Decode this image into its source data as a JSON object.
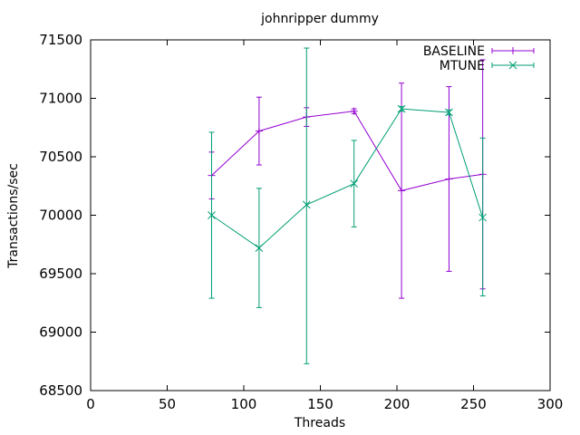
{
  "chart_data": {
    "type": "line",
    "title": "johnripper dummy",
    "xlabel": "Threads",
    "ylabel": "Transactions/sec",
    "xlim": [
      0,
      300
    ],
    "ylim": [
      68500,
      71500
    ],
    "xticks": [
      0,
      50,
      100,
      150,
      200,
      250,
      300
    ],
    "yticks": [
      68500,
      69000,
      69500,
      70000,
      70500,
      71000,
      71500
    ],
    "grid": false,
    "legend_position": "top-right",
    "series": [
      {
        "name": "BASELINE",
        "color": "#9400d3",
        "marker": "plus",
        "x": [
          79,
          110,
          141,
          172,
          203,
          234,
          256
        ],
        "y": [
          70340,
          70720,
          70840,
          70890,
          70210,
          70310,
          70350
        ],
        "err_low": [
          70140,
          70430,
          70760,
          70870,
          69290,
          69520,
          69370
        ],
        "err_high": [
          70540,
          71010,
          70920,
          70910,
          71130,
          71100,
          71330
        ]
      },
      {
        "name": "MTUNE",
        "color": "#009e73",
        "marker": "cross",
        "x": [
          79,
          110,
          141,
          172,
          203,
          234,
          256
        ],
        "y": [
          70000,
          69720,
          70090,
          70270,
          70910,
          70880,
          69980
        ],
        "err_low": [
          69290,
          69210,
          68730,
          69900,
          70890,
          70860,
          69310
        ],
        "err_high": [
          70710,
          70230,
          71430,
          70640,
          70930,
          70900,
          70660
        ]
      }
    ]
  }
}
